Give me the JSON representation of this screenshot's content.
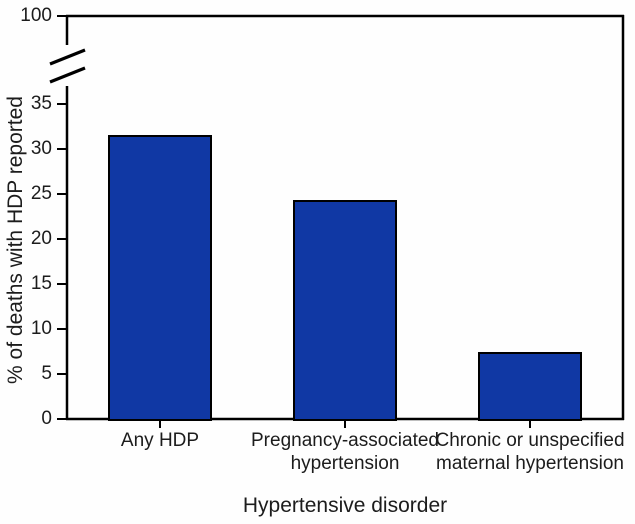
{
  "chart_data": {
    "type": "bar",
    "title": "",
    "categories": [
      "Any HDP",
      "Pregnancy-associated hypertension",
      "Chronic or unspecified maternal hypertension"
    ],
    "category_lines": [
      [
        "Any HDP"
      ],
      [
        "Pregnancy-associated",
        "hypertension"
      ],
      [
        "Chronic or unspecified",
        "maternal hypertension"
      ]
    ],
    "values": [
      31.6,
      24.3,
      7.4
    ],
    "xlabel": "Hypertensive disorder",
    "ylabel": "% of deaths with HDP reported",
    "ylim": [
      0,
      100
    ],
    "yticks": [
      0,
      5,
      10,
      15,
      20,
      25,
      30,
      35
    ],
    "ytick_top": 100,
    "axis_break": true,
    "grid": false,
    "legend": "none",
    "bar_color": "#1038A4",
    "bar_border_color": "#000000",
    "axis_color": "#000000"
  }
}
